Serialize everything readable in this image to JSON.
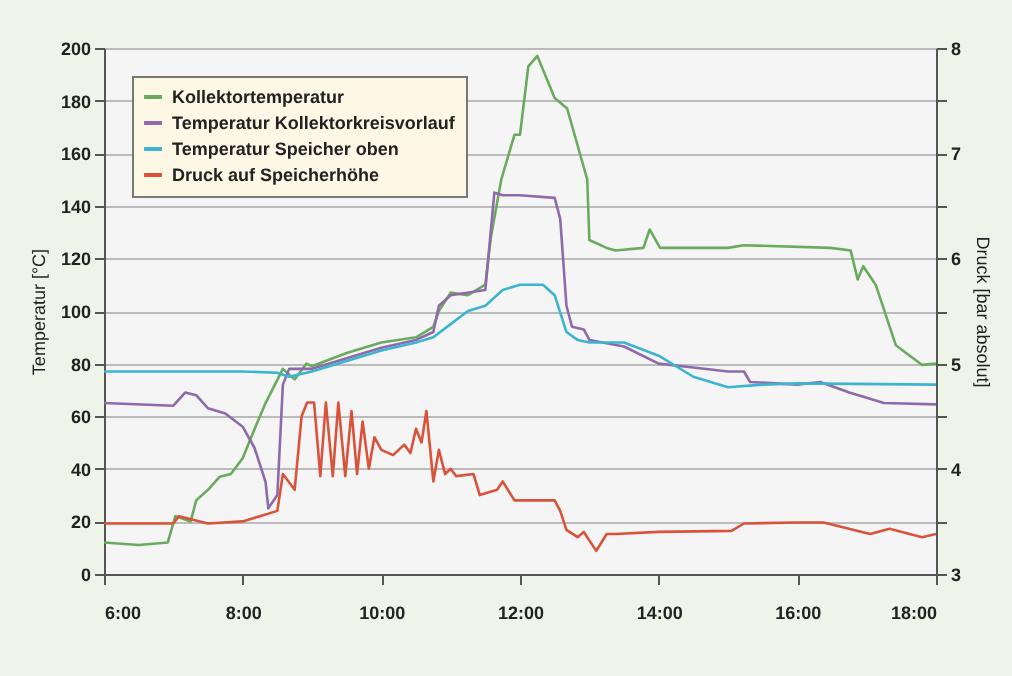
{
  "chart_data": {
    "type": "line",
    "xlabel": null,
    "ylabel": "Temperatur [°C]",
    "y2label": "Druck [bar absolut]",
    "xlim": [
      6,
      18
    ],
    "xticks": [
      {
        "value": 6,
        "label": "6:00"
      },
      {
        "value": 8,
        "label": "8:00"
      },
      {
        "value": 10,
        "label": "10:00"
      },
      {
        "value": 12,
        "label": "12:00"
      },
      {
        "value": 14,
        "label": "14:00"
      },
      {
        "value": 16,
        "label": "16:00"
      },
      {
        "value": 18,
        "label": "18:00"
      }
    ],
    "ylim": [
      0,
      200
    ],
    "yticks": [
      0,
      20,
      40,
      60,
      80,
      100,
      120,
      140,
      160,
      180,
      200
    ],
    "y2lim": [
      3,
      8
    ],
    "y2ticks": [
      3,
      {
        "value": 3.5,
        "label": null
      },
      4,
      {
        "value": 4.5,
        "label": null
      },
      5,
      {
        "value": 5.5,
        "label": null
      },
      6,
      {
        "value": 6.5,
        "label": null
      },
      7,
      {
        "value": 7.5,
        "label": null
      },
      8
    ],
    "grid": "y",
    "legend": "top left",
    "series": [
      {
        "name": "Kollektortemperatur",
        "color": "#6aaa5e",
        "x": [
          6,
          6.5,
          6.92,
          7.03,
          7.25,
          7.33,
          7.5,
          7.67,
          7.83,
          8,
          8.17,
          8.33,
          8.58,
          8.75,
          8.92,
          9,
          9.5,
          10,
          10.5,
          10.75,
          10.83,
          11,
          11.25,
          11.5,
          11.58,
          11.73,
          11.92,
          12,
          12.12,
          12.25,
          12.5,
          12.68,
          12.97,
          13,
          13.25,
          13.38,
          13.78,
          13.87,
          14.02,
          15,
          15.23,
          16.48,
          16.77,
          16.87,
          16.95,
          17.13,
          17.42,
          17.8,
          18
        ],
        "values": [
          12,
          11,
          12,
          22,
          20,
          28,
          32,
          37,
          38,
          44,
          55,
          65,
          78,
          74,
          80,
          79,
          84,
          88,
          90,
          94,
          100,
          107,
          106,
          110,
          128,
          150,
          167,
          167,
          193,
          197,
          181,
          177,
          150,
          127,
          124,
          123,
          124,
          131,
          124,
          124,
          125,
          124,
          123,
          112,
          117,
          110,
          87,
          79.5,
          80
        ]
      },
      {
        "name": "Temperatur Kollektorkreisvorlauf",
        "color": "#8e6aaa",
        "x": [
          6,
          7,
          7.17,
          7.33,
          7.5,
          7.75,
          8,
          8.17,
          8.33,
          8.37,
          8.5,
          8.58,
          8.67,
          9,
          9.5,
          10,
          10.5,
          10.75,
          10.83,
          11,
          11.5,
          11.63,
          11.75,
          12,
          12.5,
          12.58,
          12.67,
          12.75,
          12.92,
          13,
          13.5,
          14,
          14.5,
          15,
          15.23,
          15.32,
          16,
          16.33,
          16.75,
          17.25,
          18
        ],
        "values": [
          65,
          64,
          69,
          68,
          63,
          61,
          56,
          48,
          35,
          25,
          30,
          72,
          78,
          78,
          82,
          86,
          89,
          92,
          102,
          106,
          108,
          145,
          144,
          144,
          143,
          135,
          102,
          94,
          93,
          89,
          86.5,
          80,
          78.5,
          77,
          77,
          73,
          72,
          73,
          69,
          65,
          64.5
        ]
      },
      {
        "name": "Temperatur Speicher oben",
        "color": "#3cb4d0",
        "x": [
          6,
          8,
          8.5,
          8.67,
          9,
          9.5,
          10,
          10.5,
          10.75,
          11,
          11.25,
          11.5,
          11.75,
          12,
          12.33,
          12.5,
          12.67,
          12.83,
          13,
          13.5,
          14,
          14.5,
          15,
          15.5,
          16,
          18
        ],
        "values": [
          77,
          77,
          76.5,
          75,
          77,
          81,
          85,
          88,
          90,
          95,
          100,
          102,
          108,
          110,
          110,
          106,
          92,
          89,
          88,
          88,
          83,
          75,
          71,
          72,
          72.5,
          72
        ]
      },
      {
        "name": "Druck auf Speicherhöhe",
        "color": "#d9533a",
        "axis": "y2",
        "x": [
          6,
          7,
          7.08,
          7.5,
          8,
          8.25,
          8.5,
          8.58,
          8.75,
          8.85,
          8.93,
          9.03,
          9.12,
          9.2,
          9.3,
          9.38,
          9.48,
          9.57,
          9.65,
          9.73,
          9.82,
          9.9,
          10,
          10.17,
          10.33,
          10.42,
          10.5,
          10.58,
          10.65,
          10.75,
          10.83,
          10.92,
          11,
          11.08,
          11.33,
          11.42,
          11.67,
          11.75,
          11.92,
          12.5,
          12.58,
          12.67,
          12.83,
          12.92,
          13.1,
          13.25,
          13.38,
          14,
          15.05,
          15.23,
          16,
          16.38,
          17.05,
          17.33,
          17.8,
          18
        ],
        "values": [
          3.48,
          3.48,
          3.55,
          3.48,
          3.5,
          3.55,
          3.6,
          3.95,
          3.8,
          4.5,
          4.63,
          4.63,
          3.93,
          4.63,
          3.93,
          4.63,
          3.93,
          4.55,
          3.95,
          4.45,
          4.0,
          4.3,
          4.18,
          4.13,
          4.23,
          4.15,
          4.38,
          4.25,
          4.55,
          3.88,
          4.18,
          3.95,
          4.0,
          3.93,
          3.95,
          3.75,
          3.8,
          3.88,
          3.7,
          3.7,
          3.6,
          3.42,
          3.35,
          3.4,
          3.22,
          3.38,
          3.38,
          3.4,
          3.41,
          3.48,
          3.49,
          3.49,
          3.38,
          3.43,
          3.35,
          3.38
        ]
      }
    ]
  }
}
